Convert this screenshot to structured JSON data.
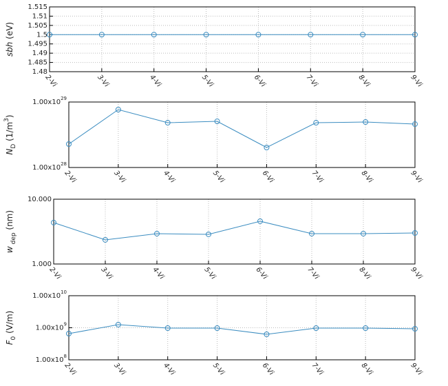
{
  "chart_data": [
    {
      "type": "line",
      "log_scale": false,
      "grid": true,
      "color": "#3a8cc0",
      "ylabel": [
        {
          "text": "sbh",
          "style": "italic"
        },
        {
          "text": " (eV)",
          "style": "normal"
        }
      ],
      "categories": [
        "2-Vi",
        "3-Vi",
        "4-Vi",
        "5-Vi",
        "6-Vi",
        "7-Vi",
        "8-Vi",
        "9-Vi"
      ],
      "values": [
        1.5,
        1.5,
        1.5,
        1.5,
        1.5,
        1.5,
        1.5,
        1.5
      ],
      "ylim": [
        1.48,
        1.515
      ],
      "yticks": [
        1.48,
        1.485,
        1.49,
        1.495,
        1.5,
        1.505,
        1.51,
        1.515
      ]
    },
    {
      "type": "line",
      "log_scale": true,
      "grid": true,
      "color": "#3a8cc0",
      "ylabel": [
        {
          "text": "N",
          "style": "italic"
        },
        {
          "text": "D",
          "style": "sub"
        },
        {
          "text": " (1/m",
          "style": "normal"
        },
        {
          "text": "3",
          "style": "sup"
        },
        {
          "text": ")",
          "style": "normal"
        }
      ],
      "categories": [
        "2-Vi",
        "3-Vi",
        "4-Vi",
        "5-Vi",
        "6-Vi",
        "7-Vi",
        "8-Vi",
        "9-Vi"
      ],
      "values": [
        2.28e+28,
        7.66e+28,
        4.83e+28,
        5.07e+28,
        2.02e+28,
        4.83e+28,
        4.95e+28,
        4.6e+28
      ],
      "ylim": [
        1e+28,
        1e+29
      ],
      "yticks": [
        {
          "value": 1e+28,
          "label": "1.00x10",
          "exponent": "28"
        },
        {
          "value": 1e+29,
          "label": "1.00x10",
          "exponent": "29"
        }
      ]
    },
    {
      "type": "line",
      "log_scale": true,
      "grid": true,
      "color": "#3a8cc0",
      "ylabel": [
        {
          "text": "w",
          "style": "italic"
        },
        {
          "text": " dep",
          "style": "sub"
        },
        {
          "text": " (nm)",
          "style": "normal"
        }
      ],
      "categories": [
        "2-Vi",
        "3-Vi",
        "4-Vi",
        "5-Vi",
        "6-Vi",
        "7-Vi",
        "8-Vi",
        "9-Vi"
      ],
      "values": [
        4.35,
        2.36,
        2.94,
        2.87,
        4.57,
        2.94,
        2.94,
        3.01
      ],
      "ylim": [
        1,
        10
      ],
      "yticks": [
        {
          "value": 1,
          "label": "1.000"
        },
        {
          "value": 10,
          "label": "10.000"
        }
      ]
    },
    {
      "type": "line",
      "log_scale": true,
      "grid": true,
      "color": "#3a8cc0",
      "ylabel": [
        {
          "text": "F",
          "style": "italic"
        },
        {
          "text": "0",
          "style": "sub"
        },
        {
          "text": " (V/m)",
          "style": "normal"
        }
      ],
      "categories": [
        "2-Vi",
        "3-Vi",
        "4-Vi",
        "5-Vi",
        "6-Vi",
        "7-Vi",
        "8-Vi",
        "9-Vi"
      ],
      "values": [
        656000000.0,
        1250000000.0,
        975000000.0,
        975000000.0,
        625000000.0,
        975000000.0,
        975000000.0,
        928000000.0
      ],
      "ylim": [
        100000000.0,
        10000000000.0
      ],
      "yticks": [
        {
          "value": 100000000.0,
          "label": "1.00x10",
          "exponent": "8"
        },
        {
          "value": 1000000000.0,
          "label": "1.00x10",
          "exponent": "9"
        },
        {
          "value": 10000000000.0,
          "label": "1.00x10",
          "exponent": "10"
        }
      ]
    }
  ]
}
